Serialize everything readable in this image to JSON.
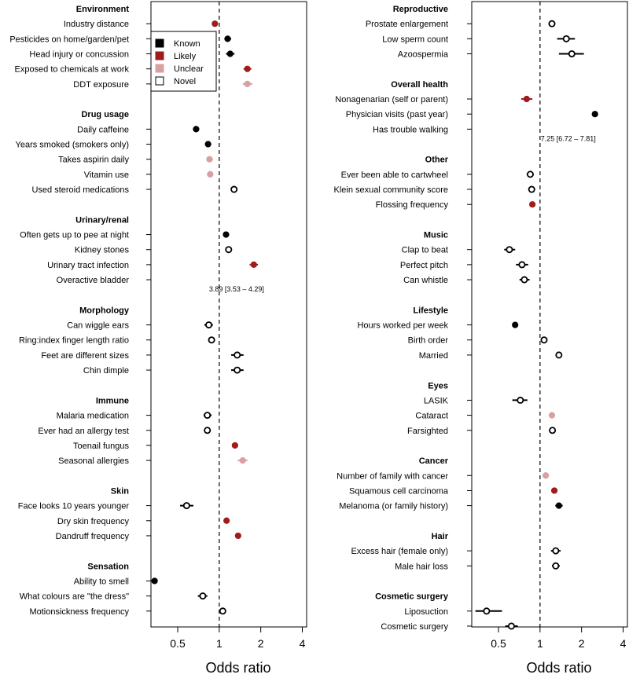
{
  "chart_data": {
    "type": "forest",
    "xlabel": "Odds ratio",
    "xscale": "log",
    "xlim": [
      0.32,
      4.3
    ],
    "reference_line": 1,
    "ticks": [
      {
        "v": 0.5,
        "label": "0.5"
      },
      {
        "v": 1,
        "label": "1"
      },
      {
        "v": 2,
        "label": "2"
      },
      {
        "v": 4,
        "label": "4"
      }
    ],
    "legend": {
      "placement": "top-right of left panel",
      "items": [
        {
          "key": "known",
          "label": "Known",
          "color": "#000000",
          "filled": true
        },
        {
          "key": "likely",
          "label": "Likely",
          "color": "#a01c1c",
          "filled": true
        },
        {
          "key": "unclear",
          "label": "Unclear",
          "color": "#d8a0a0",
          "filled": true
        },
        {
          "key": "novel",
          "label": "Novel",
          "color": "#000000",
          "filled": false
        }
      ]
    },
    "panels": [
      {
        "groups": [
          {
            "name": "Environment",
            "items": [
              {
                "label": "Industry distance",
                "or": 0.93,
                "lo": 0.93,
                "hi": 0.93,
                "cls": "likely"
              },
              {
                "label": "Pesticides on home/garden/pet",
                "or": 1.15,
                "lo": 1.09,
                "hi": 1.22,
                "cls": "known"
              },
              {
                "label": "Head injury or concussion",
                "or": 1.2,
                "lo": 1.12,
                "hi": 1.29,
                "cls": "known"
              },
              {
                "label": "Exposed to chemicals at work",
                "or": 1.6,
                "lo": 1.5,
                "hi": 1.71,
                "cls": "likely"
              },
              {
                "label": "DDT exposure",
                "or": 1.6,
                "lo": 1.48,
                "hi": 1.74,
                "cls": "unclear"
              }
            ]
          },
          {
            "name": "Drug usage",
            "items": [
              {
                "label": "Daily caffeine",
                "or": 0.68,
                "lo": 0.68,
                "hi": 0.68,
                "cls": "known"
              },
              {
                "label": "Years smoked (smokers only)",
                "or": 0.83,
                "lo": 0.8,
                "hi": 0.86,
                "cls": "known"
              },
              {
                "label": "Takes aspirin daily",
                "or": 0.85,
                "lo": 0.81,
                "hi": 0.9,
                "cls": "unclear"
              },
              {
                "label": "Vitamin use",
                "or": 0.86,
                "lo": 0.83,
                "hi": 0.89,
                "cls": "unclear"
              },
              {
                "label": "Used steroid medications",
                "or": 1.28,
                "lo": 1.23,
                "hi": 1.33,
                "cls": "novel"
              }
            ]
          },
          {
            "name": "Urinary/renal",
            "items": [
              {
                "label": "Often gets up to pee at night",
                "or": 1.12,
                "lo": 1.12,
                "hi": 1.12,
                "cls": "known"
              },
              {
                "label": "Kidney stones",
                "or": 1.17,
                "lo": 1.12,
                "hi": 1.23,
                "cls": "novel"
              },
              {
                "label": "Urinary tract infection",
                "or": 1.78,
                "lo": 1.66,
                "hi": 1.91,
                "cls": "likely"
              },
              {
                "label": "Overactive bladder",
                "or": 3.89,
                "lo": 3.53,
                "hi": 4.29,
                "cls": "novel",
                "offchart": true,
                "annotation": "3.89 [3.53 – 4.29]"
              }
            ]
          },
          {
            "name": "Morphology",
            "items": [
              {
                "label": "Can wiggle ears",
                "or": 0.84,
                "lo": 0.78,
                "hi": 0.9,
                "cls": "novel"
              },
              {
                "label": "Ring:index finger length ratio",
                "or": 0.88,
                "lo": 0.88,
                "hi": 0.88,
                "cls": "novel"
              },
              {
                "label": "Feet are different sizes",
                "or": 1.35,
                "lo": 1.22,
                "hi": 1.5,
                "cls": "novel"
              },
              {
                "label": "Chin dimple",
                "or": 1.35,
                "lo": 1.22,
                "hi": 1.5,
                "cls": "novel"
              }
            ]
          },
          {
            "name": "Immune",
            "items": [
              {
                "label": "Malaria medication",
                "or": 0.82,
                "lo": 0.77,
                "hi": 0.88,
                "cls": "novel"
              },
              {
                "label": "Ever had an allergy test",
                "or": 0.82,
                "lo": 0.78,
                "hi": 0.86,
                "cls": "novel"
              },
              {
                "label": "Toenail fungus",
                "or": 1.3,
                "lo": 1.24,
                "hi": 1.37,
                "cls": "likely"
              },
              {
                "label": "Seasonal allergies",
                "or": 1.48,
                "lo": 1.36,
                "hi": 1.6,
                "cls": "unclear"
              }
            ]
          },
          {
            "name": "Skin",
            "items": [
              {
                "label": "Face looks 10 years younger",
                "or": 0.58,
                "lo": 0.52,
                "hi": 0.65,
                "cls": "novel"
              },
              {
                "label": "Dry skin frequency",
                "or": 1.13,
                "lo": 1.13,
                "hi": 1.13,
                "cls": "likely"
              },
              {
                "label": "Dandruff frequency",
                "or": 1.37,
                "lo": 1.37,
                "hi": 1.37,
                "cls": "likely"
              }
            ]
          },
          {
            "name": "Sensation",
            "items": [
              {
                "label": "Ability to smell",
                "or": 0.34,
                "lo": 0.34,
                "hi": 0.34,
                "cls": "known"
              },
              {
                "label": "What colours are \"the dress\"",
                "or": 0.76,
                "lo": 0.7,
                "hi": 0.82,
                "cls": "novel"
              },
              {
                "label": "Motionsickness frequency",
                "or": 1.06,
                "lo": 1.06,
                "hi": 1.06,
                "cls": "novel"
              }
            ]
          }
        ]
      },
      {
        "groups": [
          {
            "name": "Reproductive",
            "items": [
              {
                "label": "Prostate enlargement",
                "or": 1.22,
                "lo": 1.15,
                "hi": 1.29,
                "cls": "novel"
              },
              {
                "label": "Low sperm count",
                "or": 1.55,
                "lo": 1.33,
                "hi": 1.79,
                "cls": "novel"
              },
              {
                "label": "Azoospermia",
                "or": 1.7,
                "lo": 1.37,
                "hi": 2.08,
                "cls": "novel"
              }
            ]
          },
          {
            "name": "Overall health",
            "items": [
              {
                "label": "Nonagenarian (self or parent)",
                "or": 0.8,
                "lo": 0.73,
                "hi": 0.88,
                "cls": "likely"
              },
              {
                "label": "Physician visits (past year)",
                "or": 2.5,
                "lo": 2.5,
                "hi": 2.5,
                "cls": "known"
              },
              {
                "label": "Has trouble walking",
                "or": 7.25,
                "lo": 6.72,
                "hi": 7.81,
                "cls": "known",
                "offchart": true,
                "annotation": "7.25 [6.72 – 7.81]"
              }
            ]
          },
          {
            "name": "Other",
            "items": [
              {
                "label": "Ever been able to cartwheel",
                "or": 0.85,
                "lo": 0.8,
                "hi": 0.9,
                "cls": "novel"
              },
              {
                "label": "Klein sexual community score",
                "or": 0.87,
                "lo": 0.84,
                "hi": 0.9,
                "cls": "novel"
              },
              {
                "label": "Flossing frequency",
                "or": 0.88,
                "lo": 0.88,
                "hi": 0.88,
                "cls": "likely"
              }
            ]
          },
          {
            "name": "Music",
            "items": [
              {
                "label": "Clap to beat",
                "or": 0.6,
                "lo": 0.55,
                "hi": 0.66,
                "cls": "novel"
              },
              {
                "label": "Perfect pitch",
                "or": 0.74,
                "lo": 0.67,
                "hi": 0.82,
                "cls": "novel"
              },
              {
                "label": "Can whistle",
                "or": 0.77,
                "lo": 0.71,
                "hi": 0.84,
                "cls": "novel"
              }
            ]
          },
          {
            "name": "Lifestyle",
            "items": [
              {
                "label": "Hours worked per week",
                "or": 0.66,
                "lo": 0.66,
                "hi": 0.66,
                "cls": "known"
              },
              {
                "label": "Birth order",
                "or": 1.07,
                "lo": 1.07,
                "hi": 1.07,
                "cls": "novel"
              },
              {
                "label": "Married",
                "or": 1.37,
                "lo": 1.31,
                "hi": 1.44,
                "cls": "novel"
              }
            ]
          },
          {
            "name": "Eyes",
            "items": [
              {
                "label": "LASIK",
                "or": 0.72,
                "lo": 0.63,
                "hi": 0.81,
                "cls": "novel"
              },
              {
                "label": "Cataract",
                "or": 1.22,
                "lo": 1.18,
                "hi": 1.27,
                "cls": "unclear"
              },
              {
                "label": "Farsighted",
                "or": 1.23,
                "lo": 1.18,
                "hi": 1.28,
                "cls": "novel"
              }
            ]
          },
          {
            "name": "Cancer",
            "items": [
              {
                "label": "Number of family with cancer",
                "or": 1.1,
                "lo": 1.1,
                "hi": 1.1,
                "cls": "unclear"
              },
              {
                "label": "Squamous cell carcinoma",
                "or": 1.27,
                "lo": 1.21,
                "hi": 1.33,
                "cls": "likely"
              },
              {
                "label": "Melanoma (or family history)",
                "or": 1.37,
                "lo": 1.29,
                "hi": 1.46,
                "cls": "known"
              }
            ]
          },
          {
            "name": "Hair",
            "items": [
              {
                "label": "Excess hair (female only)",
                "or": 1.3,
                "lo": 1.2,
                "hi": 1.41,
                "cls": "novel"
              },
              {
                "label": "Male hair loss",
                "or": 1.3,
                "lo": 1.22,
                "hi": 1.39,
                "cls": "novel"
              }
            ]
          },
          {
            "name": "Cosmetic surgery",
            "items": [
              {
                "label": "Liposuction",
                "or": 0.41,
                "lo": 0.34,
                "hi": 0.53,
                "cls": "novel"
              },
              {
                "label": "Cosmetic surgery",
                "or": 0.62,
                "lo": 0.56,
                "hi": 0.69,
                "cls": "novel"
              }
            ]
          }
        ]
      }
    ]
  }
}
